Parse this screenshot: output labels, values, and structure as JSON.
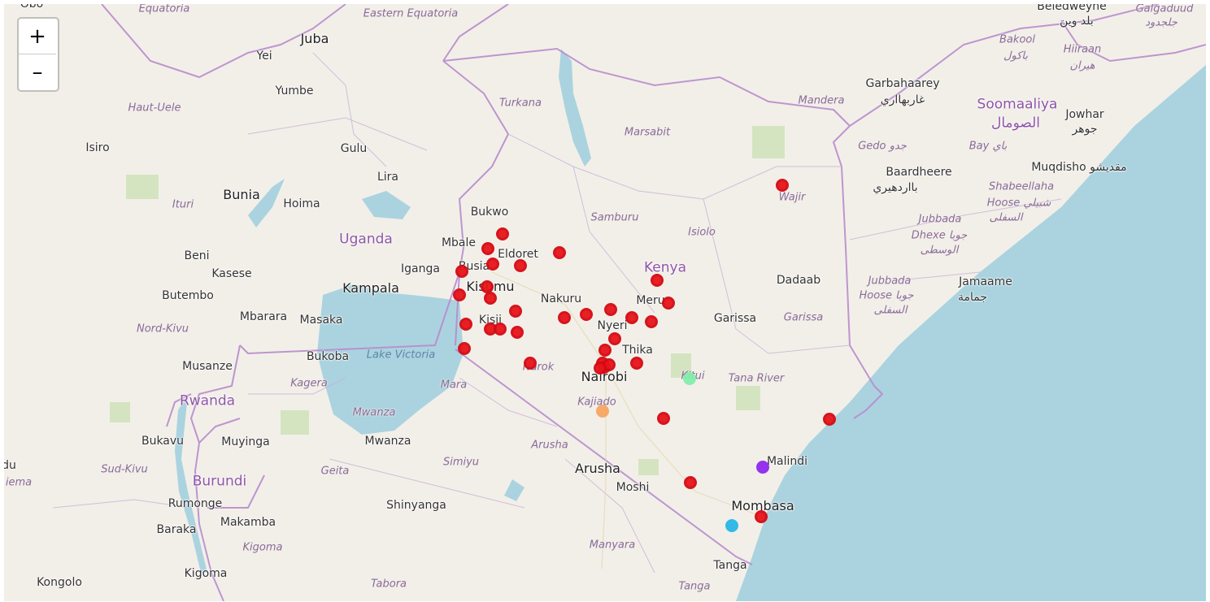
{
  "zoom": {
    "in_label": "+",
    "out_label": "–"
  },
  "colors": {
    "land": "#f2efe9",
    "sea": "#aad3df",
    "border": "#b88ccc",
    "marker_red": "#e8141b"
  },
  "labels": [
    {
      "text": "Equatoria",
      "kind": "region"
    },
    {
      "text": "Eastern Equatoria",
      "kind": "region"
    },
    {
      "text": "Juba",
      "kind": "city"
    },
    {
      "text": "Yei",
      "kind": "city"
    },
    {
      "text": "Yumbe",
      "kind": "city"
    },
    {
      "text": "Haut-Uele",
      "kind": "region"
    },
    {
      "text": "Isiro",
      "kind": "city"
    },
    {
      "text": "Gulu",
      "kind": "city"
    },
    {
      "text": "Lira",
      "kind": "city"
    },
    {
      "text": "Bunia",
      "kind": "city"
    },
    {
      "text": "Ituri",
      "kind": "region"
    },
    {
      "text": "Hoima",
      "kind": "city"
    },
    {
      "text": "Uganda",
      "kind": "country"
    },
    {
      "text": "Beni",
      "kind": "city"
    },
    {
      "text": "Kasese",
      "kind": "city"
    },
    {
      "text": "Butembo",
      "kind": "city"
    },
    {
      "text": "Iganga",
      "kind": "city"
    },
    {
      "text": "Kampala",
      "kind": "city"
    },
    {
      "text": "Mbarara",
      "kind": "city"
    },
    {
      "text": "Masaka",
      "kind": "city"
    },
    {
      "text": "Nord-Kivu",
      "kind": "region"
    },
    {
      "text": "Bukoba",
      "kind": "city"
    },
    {
      "text": "Lake Victoria",
      "kind": "water"
    },
    {
      "text": "Musanze",
      "kind": "city"
    },
    {
      "text": "Kagera",
      "kind": "region"
    },
    {
      "text": "Rwanda",
      "kind": "country"
    },
    {
      "text": "Mwanza",
      "kind": "region"
    },
    {
      "text": "Bukavu",
      "kind": "city"
    },
    {
      "text": "Muyinga",
      "kind": "city"
    },
    {
      "text": "Mwanza",
      "kind": "city"
    },
    {
      "text": "Sud-Kivu",
      "kind": "region"
    },
    {
      "text": "Burundi",
      "kind": "country"
    },
    {
      "text": "Geita",
      "kind": "region"
    },
    {
      "text": "Simiyu",
      "kind": "region"
    },
    {
      "text": "Rumonge",
      "kind": "city"
    },
    {
      "text": "Makamba",
      "kind": "city"
    },
    {
      "text": "Baraka",
      "kind": "city"
    },
    {
      "text": "Shinyanga",
      "kind": "city"
    },
    {
      "text": "Kigoma",
      "kind": "region"
    },
    {
      "text": "Kigoma",
      "kind": "city"
    },
    {
      "text": "Kongolo",
      "kind": "city"
    },
    {
      "text": "Tabora",
      "kind": "region"
    },
    {
      "text": "Bukwo",
      "kind": "city"
    },
    {
      "text": "Mbale",
      "kind": "city"
    },
    {
      "text": "Eldoret",
      "kind": "city"
    },
    {
      "text": "Busia",
      "kind": "city"
    },
    {
      "text": "Kisumu",
      "kind": "city"
    },
    {
      "text": "Kisii",
      "kind": "city"
    },
    {
      "text": "Turkana",
      "kind": "region"
    },
    {
      "text": "Marsabit",
      "kind": "region"
    },
    {
      "text": "Samburu",
      "kind": "region"
    },
    {
      "text": "Isiolo",
      "kind": "region"
    },
    {
      "text": "Kenya",
      "kind": "country"
    },
    {
      "text": "Nakuru",
      "kind": "city"
    },
    {
      "text": "Meru",
      "kind": "city"
    },
    {
      "text": "Nyeri",
      "kind": "city"
    },
    {
      "text": "Thika",
      "kind": "city"
    },
    {
      "text": "Nairobi",
      "kind": "city"
    },
    {
      "text": "Narok",
      "kind": "region"
    },
    {
      "text": "Mara",
      "kind": "region"
    },
    {
      "text": "Kajiado",
      "kind": "region"
    },
    {
      "text": "Kitui",
      "kind": "region"
    },
    {
      "text": "Tana River",
      "kind": "region"
    },
    {
      "text": "Garissa",
      "kind": "city"
    },
    {
      "text": "Garissa",
      "kind": "region"
    },
    {
      "text": "Dadaab",
      "kind": "city"
    },
    {
      "text": "Wajir",
      "kind": "region"
    },
    {
      "text": "Mandera",
      "kind": "region"
    },
    {
      "text": "Arusha",
      "kind": "region"
    },
    {
      "text": "Arusha",
      "kind": "city"
    },
    {
      "text": "Moshi",
      "kind": "city"
    },
    {
      "text": "Manyara",
      "kind": "region"
    },
    {
      "text": "Tanga",
      "kind": "city"
    },
    {
      "text": "Tanga",
      "kind": "region"
    },
    {
      "text": "Malindi",
      "kind": "city"
    },
    {
      "text": "Mombasa",
      "kind": "city"
    },
    {
      "text": "Beledweyne",
      "kind": "city"
    },
    {
      "text": "بلد وين",
      "kind": "city"
    },
    {
      "text": "Galgaduud",
      "kind": "region"
    },
    {
      "text": "جلجدود",
      "kind": "region"
    },
    {
      "text": "Bakool",
      "kind": "region"
    },
    {
      "text": "باكول",
      "kind": "region"
    },
    {
      "text": "Hiiraan",
      "kind": "region"
    },
    {
      "text": "هيران",
      "kind": "region"
    },
    {
      "text": "Garbahaarey",
      "kind": "city"
    },
    {
      "text": "غاربهااري",
      "kind": "city"
    },
    {
      "text": "Soomaaliya",
      "kind": "country"
    },
    {
      "text": "الصومال",
      "kind": "country"
    },
    {
      "text": "Jowhar",
      "kind": "city"
    },
    {
      "text": "جوهر",
      "kind": "city"
    },
    {
      "text": "Gedo جدو",
      "kind": "region"
    },
    {
      "text": "Bay باي",
      "kind": "region"
    },
    {
      "text": "Baardheere",
      "kind": "city"
    },
    {
      "text": "بااردهيري",
      "kind": "city"
    },
    {
      "text": "Muqdisho مقديشو",
      "kind": "city"
    },
    {
      "text": "Shabeellaha",
      "kind": "region"
    },
    {
      "text": "Hoose شبيلي",
      "kind": "region"
    },
    {
      "text": "السفلى",
      "kind": "region"
    },
    {
      "text": "Jubbada",
      "kind": "region"
    },
    {
      "text": "Dhexe جوبا",
      "kind": "region"
    },
    {
      "text": "الوسطى",
      "kind": "region"
    },
    {
      "text": "Jubbada",
      "kind": "region"
    },
    {
      "text": "Hoose جوبا",
      "kind": "region"
    },
    {
      "text": "السفلى",
      "kind": "region"
    },
    {
      "text": "Jamaame",
      "kind": "city"
    },
    {
      "text": "جمامة",
      "kind": "city"
    },
    {
      "text": "Obo",
      "kind": "city"
    },
    {
      "text": "du",
      "kind": "city"
    },
    {
      "text": "iema",
      "kind": "region"
    }
  ],
  "markers": [
    {
      "color": "#e8141b"
    },
    {
      "color": "#e8141b"
    },
    {
      "color": "#e8141b"
    },
    {
      "color": "#e8141b"
    },
    {
      "color": "#e8141b"
    },
    {
      "color": "#e8141b"
    },
    {
      "color": "#e8141b"
    },
    {
      "color": "#e8141b"
    },
    {
      "color": "#e8141b"
    },
    {
      "color": "#e8141b"
    },
    {
      "color": "#e8141b"
    },
    {
      "color": "#e8141b"
    },
    {
      "color": "#e8141b"
    },
    {
      "color": "#e8141b"
    },
    {
      "color": "#e8141b"
    },
    {
      "color": "#e8141b"
    },
    {
      "color": "#e8141b"
    },
    {
      "color": "#e8141b"
    },
    {
      "color": "#e8141b"
    },
    {
      "color": "#e8141b"
    },
    {
      "color": "#e8141b"
    },
    {
      "color": "#e8141b"
    },
    {
      "color": "#e8141b"
    },
    {
      "color": "#e8141b"
    },
    {
      "color": "#e8141b"
    },
    {
      "color": "#e8141b"
    },
    {
      "color": "#e8141b"
    },
    {
      "color": "#e8141b"
    },
    {
      "color": "#e8141b"
    },
    {
      "color": "#e8141b"
    },
    {
      "color": "#e8141b"
    },
    {
      "color": "#e8141b"
    },
    {
      "color": "#e8141b"
    },
    {
      "color": "#e8141b"
    },
    {
      "color": "#e8141b"
    },
    {
      "color": "#f7a35c"
    },
    {
      "color": "#7ef0a8"
    },
    {
      "color": "#8a1ef0"
    },
    {
      "color": "#1eb4e8"
    }
  ]
}
